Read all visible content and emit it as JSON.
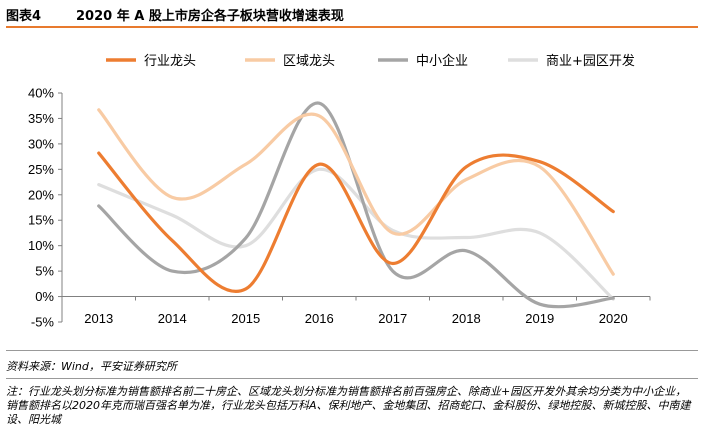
{
  "figure": {
    "number": "图表4",
    "title": "2020 年 A 股上市房企各子板块营收增速表现"
  },
  "chart_data": {
    "type": "line",
    "categories": [
      "2013",
      "2014",
      "2015",
      "2016",
      "2017",
      "2018",
      "2019",
      "2020"
    ],
    "y_tick_labels": [
      "-5%",
      "0%",
      "5%",
      "10%",
      "15%",
      "20%",
      "25%",
      "30%",
      "35%",
      "40%"
    ],
    "ylim": [
      -5,
      40
    ],
    "grid": false,
    "legend_position": "top",
    "series": [
      {
        "name": "行业龙头",
        "color": "#ed7d31",
        "values": [
          28.2,
          11.0,
          1.5,
          26.0,
          6.5,
          25.5,
          26.5,
          16.7
        ]
      },
      {
        "name": "区域龙头",
        "color": "#f8cba4",
        "values": [
          36.7,
          19.5,
          26.0,
          35.5,
          12.5,
          23.0,
          25.5,
          4.4
        ]
      },
      {
        "name": "中小企业",
        "color": "#a5a5a5",
        "values": [
          17.8,
          5.0,
          11.5,
          38.0,
          5.0,
          9.0,
          -1.5,
          -0.3
        ]
      },
      {
        "name": "商业+园区开发",
        "color": "#dedede",
        "values": [
          22.0,
          16.0,
          10.0,
          25.0,
          13.0,
          11.6,
          12.5,
          -0.5
        ]
      }
    ]
  },
  "footer": {
    "source": "资料来源：Wind，平安证券研究所",
    "note": "注：行业龙头划分标准为销售额排名前二十房企、区域龙头划分标准为销售额排名前百强房企、除商业+园区开发外其余均分类为中小企业，销售额排名以2020年克而瑞百强名单为准，行业龙头包括万科A、保利地产、金地集团、招商蛇口、金科股份、绿地控股、新城控股、中南建设、阳光城"
  }
}
